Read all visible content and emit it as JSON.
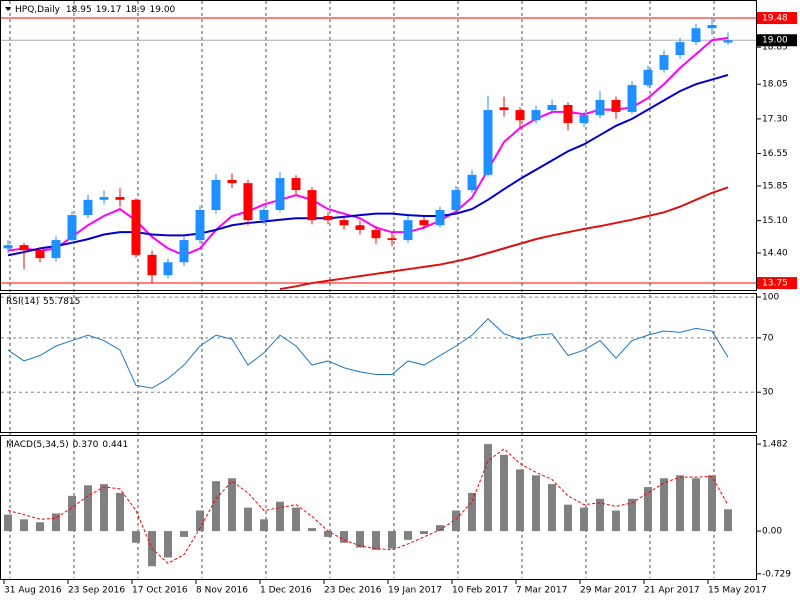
{
  "chart_data": [
    {
      "type": "candlestick",
      "title": "HPQ,Daily",
      "categories": [
        "31 Aug 2016",
        null,
        null,
        null,
        "23 Sep 2016",
        null,
        null,
        null,
        "17 Oct 2016",
        null,
        null,
        null,
        "8 Nov 2016",
        null,
        null,
        null,
        "1 Dec 2016",
        null,
        null,
        null,
        "23 Dec 2016",
        null,
        null,
        null,
        "19 Jan 2017",
        null,
        null,
        null,
        "10 Feb 2017",
        null,
        null,
        null,
        "7 Mar 2017",
        null,
        null,
        null,
        "29 Mar 2017",
        null,
        null,
        null,
        "21 Apr 2017",
        null,
        null,
        null,
        "15 May 2017",
        null
      ],
      "ohlc": [
        [
          14.5,
          14.68,
          14.4,
          14.57
        ],
        [
          14.57,
          14.62,
          14.05,
          14.46
        ],
        [
          14.46,
          14.52,
          14.2,
          14.29
        ],
        [
          14.29,
          14.76,
          14.22,
          14.68
        ],
        [
          14.68,
          15.3,
          14.6,
          15.22
        ],
        [
          15.22,
          15.66,
          15.15,
          15.55
        ],
        [
          15.55,
          15.75,
          15.45,
          15.61
        ],
        [
          15.61,
          15.8,
          15.4,
          15.55
        ],
        [
          15.55,
          15.58,
          14.3,
          14.36
        ],
        [
          14.36,
          14.45,
          13.75,
          13.92
        ],
        [
          13.92,
          14.28,
          13.85,
          14.2
        ],
        [
          14.2,
          14.75,
          14.12,
          14.68
        ],
        [
          14.68,
          15.42,
          14.6,
          15.33
        ],
        [
          15.33,
          16.1,
          15.25,
          15.98
        ],
        [
          15.98,
          16.12,
          15.8,
          15.91
        ],
        [
          15.91,
          15.98,
          15.0,
          15.11
        ],
        [
          15.11,
          15.42,
          15.02,
          15.33
        ],
        [
          15.33,
          16.15,
          15.28,
          16.02
        ],
        [
          16.02,
          16.08,
          15.65,
          15.76
        ],
        [
          15.76,
          15.82,
          15.02,
          15.11
        ],
        [
          15.2,
          15.28,
          15.02,
          15.11
        ],
        [
          15.11,
          15.18,
          14.9,
          15.0
        ],
        [
          15.0,
          15.1,
          14.8,
          14.9
        ],
        [
          14.9,
          14.98,
          14.6,
          14.72
        ],
        [
          14.72,
          14.85,
          14.55,
          14.68
        ],
        [
          14.68,
          15.2,
          14.62,
          15.11
        ],
        [
          15.11,
          15.18,
          14.92,
          15.0
        ],
        [
          15.0,
          15.4,
          14.95,
          15.33
        ],
        [
          15.33,
          15.85,
          15.28,
          15.76
        ],
        [
          15.76,
          16.2,
          15.7,
          16.09
        ],
        [
          16.09,
          17.8,
          16.05,
          17.49
        ],
        [
          17.55,
          17.78,
          17.35,
          17.49
        ],
        [
          17.49,
          17.55,
          17.1,
          17.27
        ],
        [
          17.27,
          17.58,
          17.2,
          17.49
        ],
        [
          17.49,
          17.72,
          17.4,
          17.6
        ],
        [
          17.6,
          17.66,
          17.05,
          17.21
        ],
        [
          17.21,
          17.45,
          17.12,
          17.38
        ],
        [
          17.38,
          17.9,
          17.32,
          17.71
        ],
        [
          17.71,
          17.78,
          17.3,
          17.45
        ],
        [
          17.45,
          18.12,
          17.4,
          18.03
        ],
        [
          18.03,
          18.45,
          17.98,
          18.36
        ],
        [
          18.36,
          18.78,
          18.3,
          18.68
        ],
        [
          18.68,
          19.05,
          18.6,
          18.96
        ],
        [
          18.96,
          19.35,
          18.9,
          19.26
        ],
        [
          19.26,
          19.48,
          19.12,
          19.33
        ],
        [
          18.95,
          19.17,
          18.9,
          19.0
        ]
      ],
      "up_color": "#1e90ff",
      "down_color": "#ff0000",
      "series": [
        {
          "color": "#ff00ff",
          "values": [
            14.45,
            14.5,
            14.45,
            14.5,
            14.75,
            15.0,
            15.2,
            15.35,
            15.1,
            14.75,
            14.5,
            14.35,
            14.5,
            14.9,
            15.2,
            15.3,
            15.45,
            15.55,
            15.65,
            15.55,
            15.35,
            15.25,
            15.15,
            14.95,
            14.85,
            14.85,
            14.95,
            15.1,
            15.3,
            15.6,
            16.2,
            16.8,
            17.1,
            17.3,
            17.45,
            17.45,
            17.4,
            17.5,
            17.5,
            17.55,
            17.75,
            18.05,
            18.4,
            18.7,
            19.0,
            19.05
          ]
        },
        {
          "color": "#0000cd",
          "values": [
            14.35,
            14.42,
            14.5,
            14.55,
            14.62,
            14.7,
            14.8,
            14.85,
            14.85,
            14.8,
            14.78,
            14.78,
            14.82,
            14.9,
            15.0,
            15.05,
            15.08,
            15.12,
            15.15,
            15.15,
            15.15,
            15.18,
            15.22,
            15.25,
            15.25,
            15.22,
            15.2,
            15.2,
            15.25,
            15.35,
            15.55,
            15.78,
            16.0,
            16.2,
            16.4,
            16.6,
            16.75,
            16.95,
            17.15,
            17.3,
            17.5,
            17.7,
            17.9,
            18.05,
            18.15,
            18.25
          ]
        },
        {
          "color": "#dd1010",
          "values": [
            null,
            null,
            null,
            null,
            null,
            null,
            null,
            null,
            null,
            null,
            null,
            null,
            null,
            null,
            null,
            null,
            null,
            13.62,
            13.68,
            13.75,
            13.8,
            13.85,
            13.9,
            13.95,
            14.0,
            14.05,
            14.1,
            14.15,
            14.22,
            14.3,
            14.4,
            14.5,
            14.6,
            14.7,
            14.78,
            14.85,
            14.92,
            14.98,
            15.05,
            15.12,
            15.2,
            15.28,
            15.4,
            15.55,
            15.7,
            15.82
          ]
        }
      ],
      "ylim": [
        13.6,
        19.87
      ],
      "yticks": [
        18.85,
        18.05,
        {
          "value": 17.3,
          "label": "17.30"
        },
        16.55,
        15.85,
        {
          "value": 15.1,
          "label": "15.10"
        },
        {
          "value": 14.4,
          "label": "14.40"
        }
      ],
      "hlines": [
        19.48,
        13.75
      ],
      "hline_color": "#ff0000",
      "last_price": {
        "value": 19,
        "label": "19.00"
      }
    },
    {
      "type": "line",
      "title": "RSI(14)",
      "color": "#1e78c8",
      "values": [
        61,
        53,
        57,
        64,
        68,
        72,
        68,
        61,
        35,
        33,
        40,
        50,
        64,
        72,
        69,
        50,
        59,
        72,
        64,
        50,
        53,
        48,
        45,
        43,
        43,
        53,
        50,
        57,
        64,
        72,
        84,
        73,
        69,
        72,
        73,
        57,
        61,
        68,
        55,
        68,
        72,
        75,
        74,
        77,
        75,
        55.7815
      ],
      "ylim": [
        0,
        103
      ],
      "yticks": [
        100,
        70,
        30
      ],
      "grid": true
    },
    {
      "type": "histogram",
      "title": "MACD(5,34,5)",
      "color": "#808080",
      "values": [
        0.28,
        0.2,
        0.15,
        0.3,
        0.6,
        0.78,
        0.8,
        0.65,
        -0.2,
        -0.6,
        -0.45,
        -0.1,
        0.35,
        0.85,
        0.9,
        0.4,
        0.2,
        0.5,
        0.4,
        0.05,
        -0.1,
        -0.2,
        -0.28,
        -0.32,
        -0.3,
        -0.15,
        -0.05,
        0.1,
        0.35,
        0.65,
        1.482,
        1.3,
        1.05,
        0.95,
        0.8,
        0.45,
        0.4,
        0.55,
        0.35,
        0.55,
        0.75,
        0.9,
        0.95,
        0.9,
        0.95,
        0.37
      ],
      "last_value_label": "0.370",
      "signal": {
        "color": "#ff0000",
        "values": [
          0.35,
          0.28,
          0.2,
          0.22,
          0.4,
          0.6,
          0.75,
          0.72,
          0.35,
          -0.3,
          -0.55,
          -0.4,
          0.05,
          0.55,
          0.85,
          0.65,
          0.35,
          0.4,
          0.45,
          0.25,
          0.0,
          -0.15,
          -0.25,
          -0.3,
          -0.32,
          -0.22,
          -0.1,
          0.02,
          0.2,
          0.5,
          1.2,
          1.4,
          1.15,
          1.0,
          0.88,
          0.6,
          0.45,
          0.48,
          0.42,
          0.48,
          0.65,
          0.82,
          0.92,
          0.92,
          0.93,
          0.441
        ]
      },
      "ylim": [
        -0.8,
        1.62
      ],
      "yticks": [
        1.482,
        {
          "value": 0,
          "label": "0.00"
        },
        -0.729
      ]
    }
  ]
}
